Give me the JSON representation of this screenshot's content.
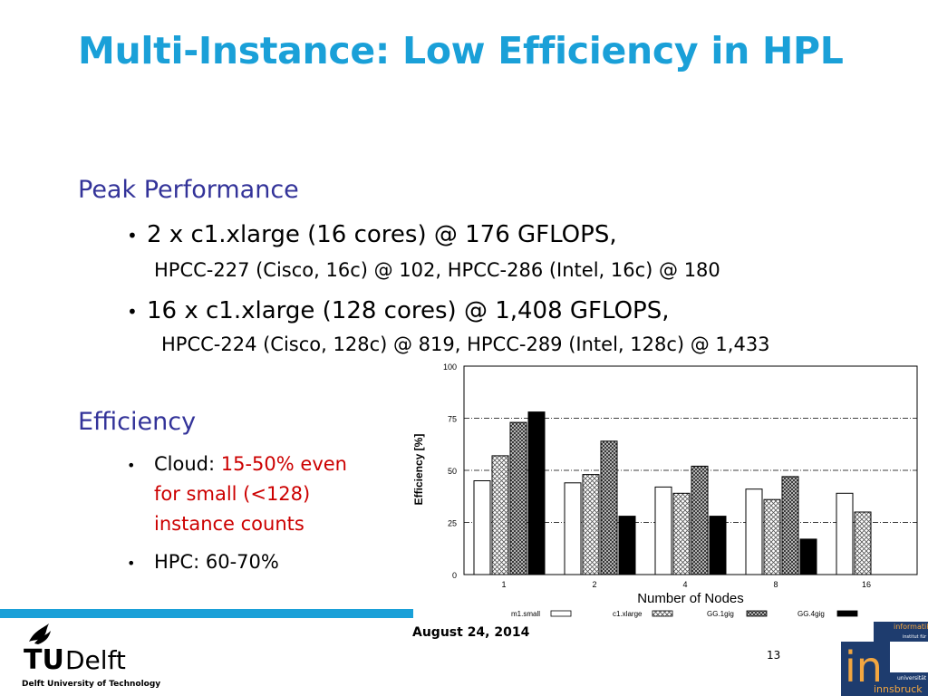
{
  "slide": {
    "title": "Multi-Instance: Low Efficiency in HPL",
    "peak_heading": "Peak Performance",
    "bullet1_main": "2 x c1.xlarge (16 cores) @ 176 GFLOPS,",
    "bullet1_sub": "HPCC-227 (Cisco, 16c) @ 102, HPCC-286 (Intel, 16c) @ 180",
    "bullet2_main": "16 x c1.xlarge (128 cores) @ 1,408 GFLOPS,",
    "bullet2_sub": "HPCC-224 (Cisco, 128c) @ 819, HPCC-289 (Intel, 128c) @ 1,433",
    "efficiency_heading": "Efficiency",
    "cloud_label": "Cloud:",
    "cloud_line1": "15-50% even",
    "cloud_line2": "for small (<128)",
    "cloud_line3": "instance counts",
    "hpc_line": "HPC: 60-70%",
    "bullet_glyph": "•"
  },
  "footer": {
    "date": "August 24, 2014",
    "page_number": "13",
    "tudelft_wordmark_tu": "TU",
    "tudelft_wordmark_delft": "Delft",
    "tudelft_name": "Delft University of Technology",
    "ibk_logo_text_top": "informatik",
    "ibk_logo_text_mid": "institut für",
    "ibk_logo_big": "in",
    "ibk_logo_text_uni": "universität",
    "ibk_logo_text_bottom": "innsbruck",
    "accent_color": "#1aa0d8"
  },
  "chart_data": {
    "type": "bar",
    "xlabel": "Number of Nodes",
    "ylabel": "Efficiency [%]",
    "ylim": [
      0,
      100
    ],
    "yticks": [
      0,
      25,
      50,
      75,
      100
    ],
    "grid": "horizontal dashed",
    "legend_position": "bottom",
    "categories": [
      "1",
      "2",
      "4",
      "8",
      "16"
    ],
    "series": [
      {
        "name": "m1.small",
        "pattern": "white",
        "values": [
          45,
          44,
          42,
          41,
          39
        ]
      },
      {
        "name": "c1.xlarge",
        "pattern": "crosshatch",
        "values": [
          57,
          48,
          39,
          36,
          30
        ]
      },
      {
        "name": "GG.1gig",
        "pattern": "dense-crosshatch",
        "values": [
          73,
          64,
          52,
          47,
          null
        ]
      },
      {
        "name": "GG.4gig",
        "pattern": "black",
        "values": [
          78,
          28,
          28,
          17,
          null
        ]
      }
    ]
  }
}
